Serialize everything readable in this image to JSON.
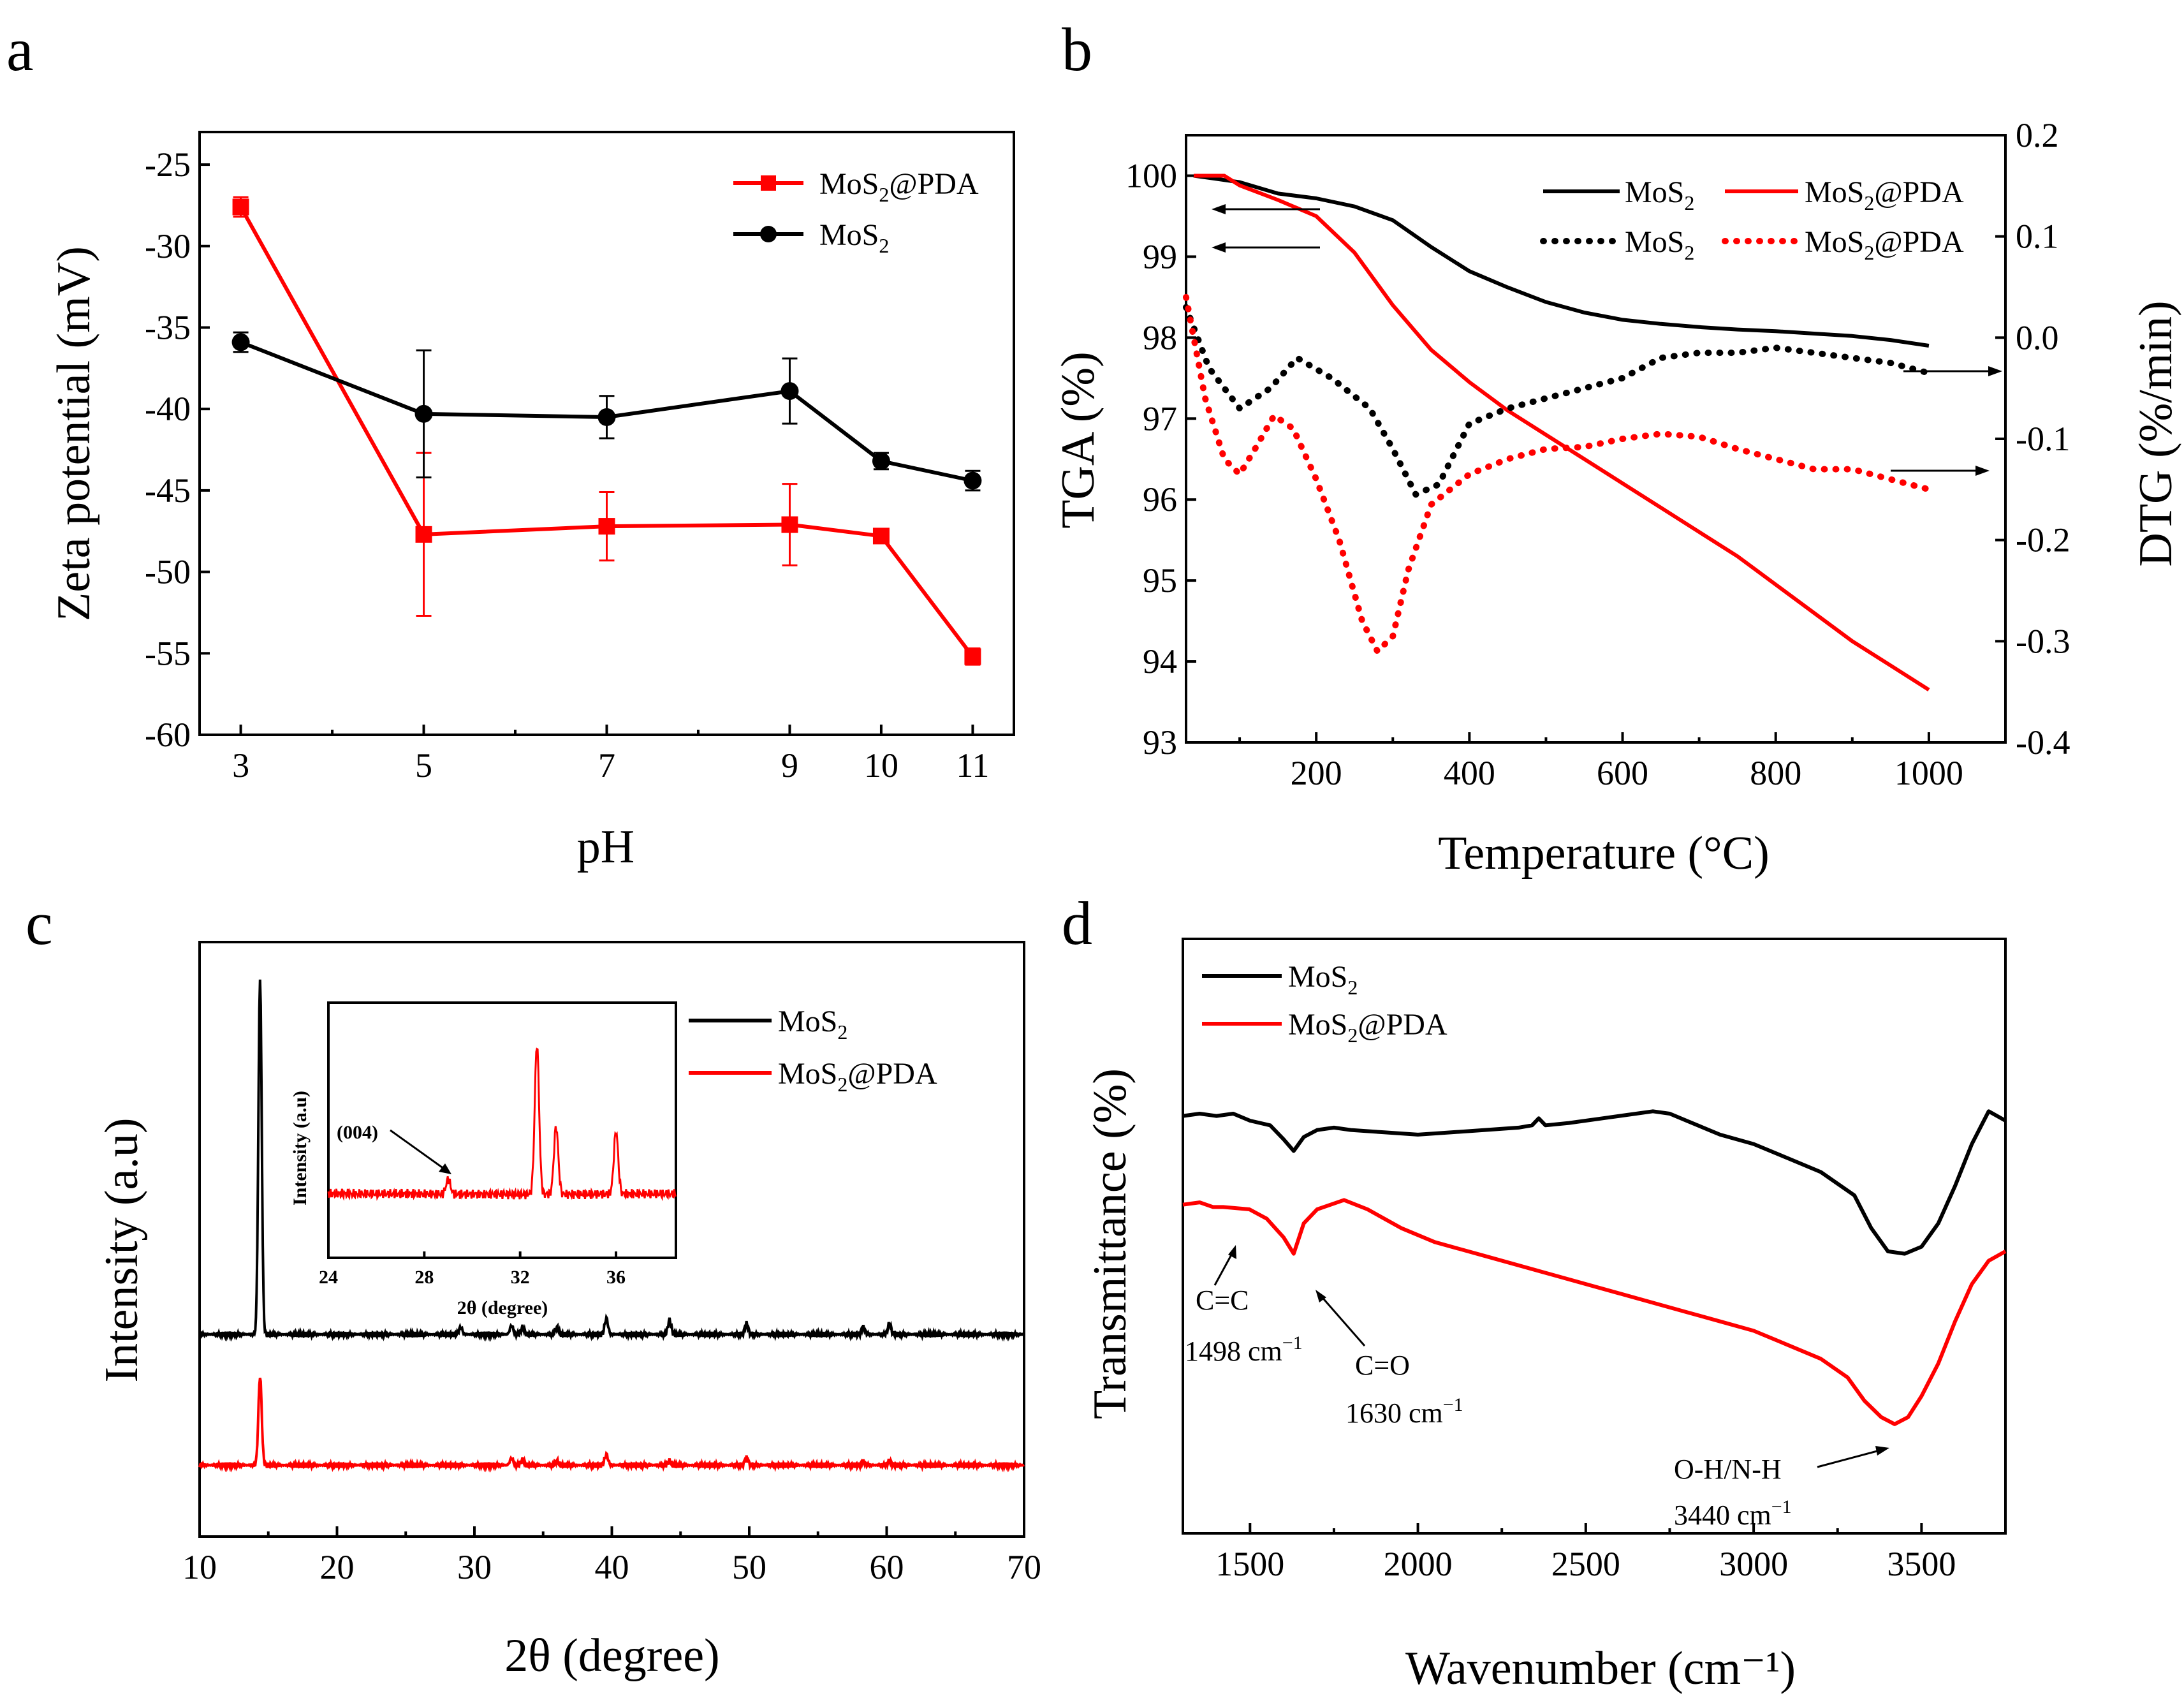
{
  "chart_data": [
    {
      "panel": "a",
      "type": "line",
      "xlabel": "pH",
      "ylabel": "Zeta potential (mV)",
      "xticks": [
        "3",
        "5",
        "7",
        "9",
        "10",
        "11"
      ],
      "yticks": [
        "-25",
        "-30",
        "-35",
        "-40",
        "-45",
        "-50",
        "-55",
        "-60"
      ],
      "ylim": [
        -60,
        -23
      ],
      "x": [
        3,
        5,
        7,
        9,
        10,
        11
      ],
      "series": [
        {
          "name": "MoS2@PDA",
          "name_base": "MoS",
          "name_sub": "2",
          "name_rest": "@PDA",
          "color": "#ff0000",
          "marker": "square",
          "values": [
            -27.6,
            -47.7,
            -47.2,
            -47.1,
            -47.8,
            -55.2
          ],
          "errors": [
            0.6,
            5.0,
            2.1,
            2.5,
            0.2,
            0.5
          ]
        },
        {
          "name": "MoS2",
          "name_base": "MoS",
          "name_sub": "2",
          "name_rest": "",
          "color": "#000000",
          "marker": "circle",
          "values": [
            -35.9,
            -40.3,
            -40.5,
            -38.9,
            -43.2,
            -44.4
          ],
          "errors": [
            0.6,
            3.9,
            1.3,
            2.0,
            0.5,
            0.6
          ]
        }
      ]
    },
    {
      "panel": "b",
      "type": "line",
      "xlabel": "Temperature (°C)",
      "ylabel": "TGA (%)",
      "ylabel_right": "DTG (%/min)",
      "xticks": [
        "200",
        "400",
        "600",
        "800",
        "1000"
      ],
      "yticks": [
        "93",
        "94",
        "95",
        "96",
        "97",
        "98",
        "99",
        "100"
      ],
      "yticks_right": [
        "0.2",
        "0.1",
        "0.0",
        "-0.1",
        "-0.2",
        "-0.3",
        "-0.4"
      ],
      "xlim": [
        30,
        1100
      ],
      "ylim": [
        93,
        100.5
      ],
      "ylim_right": [
        -0.4,
        0.2
      ],
      "series": [
        {
          "name": "MoS2",
          "name_base": "MoS",
          "name_sub": "2",
          "name_rest": "",
          "color": "#000000",
          "style": "solid",
          "axis": "TGA",
          "x": [
            40,
            100,
            150,
            200,
            250,
            300,
            350,
            400,
            450,
            500,
            550,
            600,
            650,
            700,
            750,
            800,
            850,
            900,
            950,
            1000
          ],
          "values": [
            100.0,
            99.92,
            99.78,
            99.72,
            99.62,
            99.45,
            99.12,
            98.82,
            98.62,
            98.44,
            98.31,
            98.22,
            98.17,
            98.13,
            98.1,
            98.08,
            98.05,
            98.02,
            97.97,
            97.9
          ]
        },
        {
          "name": "MoS2@PDA",
          "name_base": "MoS",
          "name_sub": "2",
          "name_rest": "@PDA",
          "color": "#ff0000",
          "style": "solid",
          "axis": "TGA",
          "x": [
            40,
            80,
            100,
            150,
            200,
            250,
            300,
            350,
            400,
            450,
            500,
            550,
            600,
            650,
            700,
            750,
            800,
            850,
            900,
            950,
            1000
          ],
          "values": [
            100.0,
            100.0,
            99.88,
            99.7,
            99.5,
            99.05,
            98.4,
            97.85,
            97.45,
            97.1,
            96.8,
            96.5,
            96.2,
            95.9,
            95.6,
            95.3,
            94.95,
            94.6,
            94.25,
            93.95,
            93.65
          ]
        },
        {
          "name": "MoS2",
          "name_base": "MoS",
          "name_sub": "2",
          "name_rest": "",
          "color": "#000000",
          "style": "dotted",
          "axis": "DTG",
          "x": [
            30,
            60,
            100,
            140,
            175,
            220,
            270,
            300,
            330,
            360,
            400,
            450,
            500,
            550,
            600,
            650,
            700,
            750,
            800,
            850,
            900,
            950,
            1000
          ],
          "values": [
            0.03,
            -0.03,
            -0.07,
            -0.05,
            -0.02,
            -0.04,
            -0.07,
            -0.11,
            -0.155,
            -0.145,
            -0.085,
            -0.07,
            -0.06,
            -0.05,
            -0.04,
            -0.02,
            -0.015,
            -0.015,
            -0.01,
            -0.015,
            -0.02,
            -0.025,
            -0.035
          ]
        },
        {
          "name": "MoS2@PDA",
          "name_base": "MoS",
          "name_sub": "2",
          "name_rest": "@PDA",
          "color": "#ff0000",
          "style": "dotted",
          "axis": "DTG",
          "x": [
            30,
            55,
            80,
            100,
            120,
            145,
            170,
            200,
            230,
            260,
            280,
            300,
            320,
            350,
            400,
            450,
            500,
            550,
            600,
            650,
            700,
            750,
            800,
            850,
            900,
            950,
            1000
          ],
          "values": [
            0.04,
            -0.06,
            -0.12,
            -0.135,
            -0.11,
            -0.077,
            -0.09,
            -0.14,
            -0.2,
            -0.28,
            -0.31,
            -0.295,
            -0.23,
            -0.165,
            -0.135,
            -0.12,
            -0.11,
            -0.108,
            -0.1,
            -0.095,
            -0.098,
            -0.11,
            -0.12,
            -0.13,
            -0.13,
            -0.14,
            -0.15
          ]
        }
      ]
    },
    {
      "panel": "c",
      "type": "line",
      "xlabel": "2θ (degree)",
      "ylabel": "Intensity (a.u)",
      "xticks": [
        "10",
        "20",
        "30",
        "40",
        "50",
        "60",
        "70"
      ],
      "xlim": [
        10,
        70
      ],
      "series": [
        {
          "name": "MoS2",
          "name_base": "MoS",
          "name_sub": "2",
          "name_rest": "",
          "color": "#000000",
          "baseline": 0.34,
          "scale": 0.6,
          "peaks": [
            [
              14.4,
              1.0
            ],
            [
              29.0,
              0.02
            ],
            [
              32.7,
              0.025
            ],
            [
              33.5,
              0.02
            ],
            [
              36.0,
              0.02
            ],
            [
              39.6,
              0.045
            ],
            [
              44.2,
              0.04
            ],
            [
              49.8,
              0.03
            ],
            [
              58.3,
              0.02
            ],
            [
              60.2,
              0.03
            ]
          ]
        },
        {
          "name": "MoS2@PDA",
          "name_base": "MoS",
          "name_sub": "2",
          "name_rest": "@PDA",
          "color": "#ff0000",
          "baseline": 0.12,
          "scale": 0.6,
          "peaks": [
            [
              14.4,
              0.25
            ],
            [
              32.7,
              0.02
            ],
            [
              33.5,
              0.015
            ],
            [
              36.0,
              0.012
            ],
            [
              39.6,
              0.03
            ],
            [
              44.2,
              0.012
            ],
            [
              49.8,
              0.02
            ],
            [
              58.3,
              0.01
            ],
            [
              60.2,
              0.012
            ]
          ]
        }
      ],
      "inset": {
        "xlabel": "2θ (degree)",
        "ylabel": "Intensity (a.u)",
        "xticks": [
          "24",
          "28",
          "32",
          "36"
        ],
        "xlim": [
          24,
          38.5
        ],
        "annotation": "(004)",
        "color": "#ff0000",
        "peaks": [
          [
            29.0,
            0.1
          ],
          [
            32.7,
            1.0
          ],
          [
            33.5,
            0.45
          ],
          [
            36.0,
            0.42
          ]
        ]
      }
    },
    {
      "panel": "d",
      "type": "line",
      "xlabel": "Wavenumber (cm⁻¹)",
      "ylabel": "Transmittance (%)",
      "xticks": [
        "1500",
        "2000",
        "2500",
        "3000",
        "3500"
      ],
      "xlim": [
        1300,
        3750
      ],
      "ylim": [
        0,
        1
      ],
      "series": [
        {
          "name": "MoS2",
          "name_base": "MoS",
          "name_sub": "2",
          "name_rest": "",
          "color": "#000000",
          "x": [
            1300,
            1350,
            1400,
            1450,
            1500,
            1560,
            1600,
            1630,
            1660,
            1700,
            1750,
            1800,
            1900,
            2000,
            2100,
            2200,
            2300,
            2340,
            2360,
            2380,
            2450,
            2550,
            2650,
            2700,
            2750,
            2800,
            2900,
            3000,
            3100,
            3200,
            3300,
            3350,
            3400,
            3450,
            3500,
            3550,
            3600,
            3650,
            3700,
            3750
          ],
          "values": [
            0.73,
            0.735,
            0.73,
            0.735,
            0.72,
            0.71,
            0.68,
            0.655,
            0.685,
            0.7,
            0.705,
            0.7,
            0.695,
            0.69,
            0.695,
            0.7,
            0.705,
            0.71,
            0.725,
            0.71,
            0.715,
            0.725,
            0.735,
            0.74,
            0.735,
            0.72,
            0.69,
            0.67,
            0.64,
            0.61,
            0.56,
            0.49,
            0.44,
            0.435,
            0.45,
            0.5,
            0.58,
            0.67,
            0.74,
            0.72
          ]
        },
        {
          "name": "MoS2@PDA",
          "name_base": "MoS",
          "name_sub": "2",
          "name_rest": "@PDA",
          "color": "#ff0000",
          "x": [
            1300,
            1350,
            1390,
            1420,
            1498,
            1550,
            1600,
            1630,
            1660,
            1700,
            1780,
            1850,
            1950,
            2050,
            2200,
            2400,
            2600,
            2800,
            2900,
            3000,
            3100,
            3200,
            3280,
            3330,
            3380,
            3420,
            3460,
            3500,
            3550,
            3600,
            3650,
            3700,
            3750
          ],
          "values": [
            0.54,
            0.545,
            0.535,
            0.535,
            0.53,
            0.51,
            0.47,
            0.435,
            0.5,
            0.53,
            0.55,
            0.53,
            0.49,
            0.46,
            0.43,
            0.39,
            0.35,
            0.31,
            0.29,
            0.27,
            0.24,
            0.21,
            0.17,
            0.12,
            0.085,
            0.07,
            0.085,
            0.13,
            0.2,
            0.29,
            0.37,
            0.42,
            0.44
          ]
        }
      ],
      "annotations": {
        "cc_label": "C=C",
        "cc_value": "1498 cm",
        "co_label": "C=O",
        "co_value": "1630 cm",
        "oh_label": "O-H/N-H",
        "oh_value": "3440 cm",
        "superscript": "−1"
      }
    }
  ],
  "panel_letters": {
    "a": "a",
    "b": "b",
    "c": "c",
    "d": "d"
  }
}
